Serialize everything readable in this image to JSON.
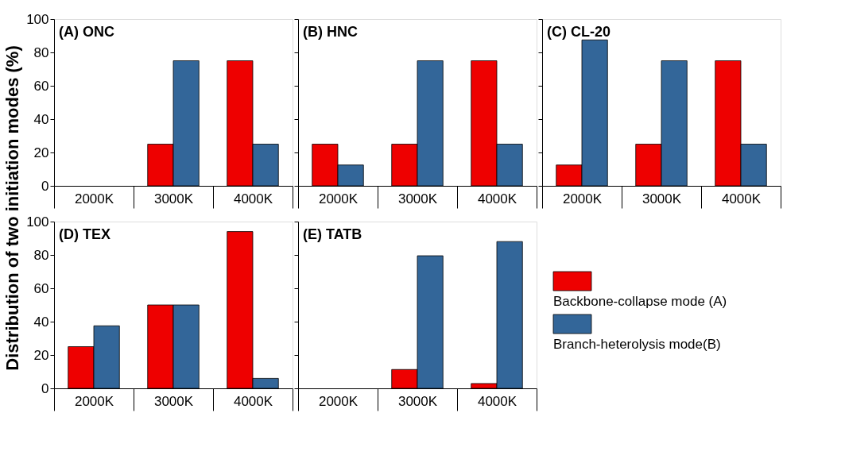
{
  "chart_data": [
    {
      "type": "bar",
      "title": "(A) ONC",
      "ylabel": "Distribution of two initiation modes (%)",
      "categories": [
        "2000K",
        "3000K",
        "4000K"
      ],
      "ylim": [
        0,
        100
      ],
      "yticks": [
        0,
        20,
        40,
        60,
        80,
        100
      ],
      "series": [
        {
          "color": "#ee0000",
          "values": [
            null,
            25,
            75
          ]
        },
        {
          "color": "#336699",
          "values": [
            null,
            75,
            25
          ]
        }
      ]
    },
    {
      "type": "bar",
      "title": "(B) HNC",
      "categories": [
        "2000K",
        "3000K",
        "4000K"
      ],
      "ylim": [
        0,
        100
      ],
      "yticks": [
        0,
        20,
        40,
        60,
        80,
        100
      ],
      "tick_labels": "x",
      "series": [
        {
          "color": "#ee0000",
          "values": [
            25,
            25,
            75
          ]
        },
        {
          "color": "#336699",
          "values": [
            12.5,
            75,
            25
          ]
        }
      ]
    },
    {
      "type": "bar",
      "title": "(C) CL-20",
      "categories": [
        "2000K",
        "3000K",
        "4000K"
      ],
      "ylim": [
        0,
        100
      ],
      "yticks": [
        0,
        20,
        40,
        60,
        80,
        100
      ],
      "tick_labels": "x",
      "series": [
        {
          "color": "#ee0000",
          "values": [
            12.5,
            25,
            75
          ]
        },
        {
          "color": "#336699",
          "values": [
            87.5,
            75,
            25
          ]
        }
      ]
    },
    {
      "type": "bar",
      "title": "(D) TEX",
      "categories": [
        "2000K",
        "3000K",
        "4000K"
      ],
      "ylim": [
        0,
        100
      ],
      "yticks": [
        0,
        20,
        40,
        60,
        80,
        100
      ],
      "series": [
        {
          "color": "#ee0000",
          "values": [
            25,
            50,
            94
          ]
        },
        {
          "color": "#336699",
          "values": [
            37.5,
            50,
            6
          ]
        }
      ]
    },
    {
      "type": "bar",
      "title": "(E) TATB",
      "categories": [
        "2000K",
        "3000K",
        "4000K"
      ],
      "ylim": [
        0,
        100
      ],
      "yticks": [
        0,
        20,
        40,
        60,
        80,
        100
      ],
      "tick_labels": "x",
      "legend": "right",
      "series": [
        {
          "name": "Backbone-collapse mode (A)",
          "color": "#ee0000",
          "values": [
            null,
            11.3,
            2.9
          ]
        },
        {
          "name": "Branch-heterolysis mode(B)",
          "color": "#336699",
          "values": [
            null,
            79.5,
            88
          ]
        }
      ]
    }
  ]
}
